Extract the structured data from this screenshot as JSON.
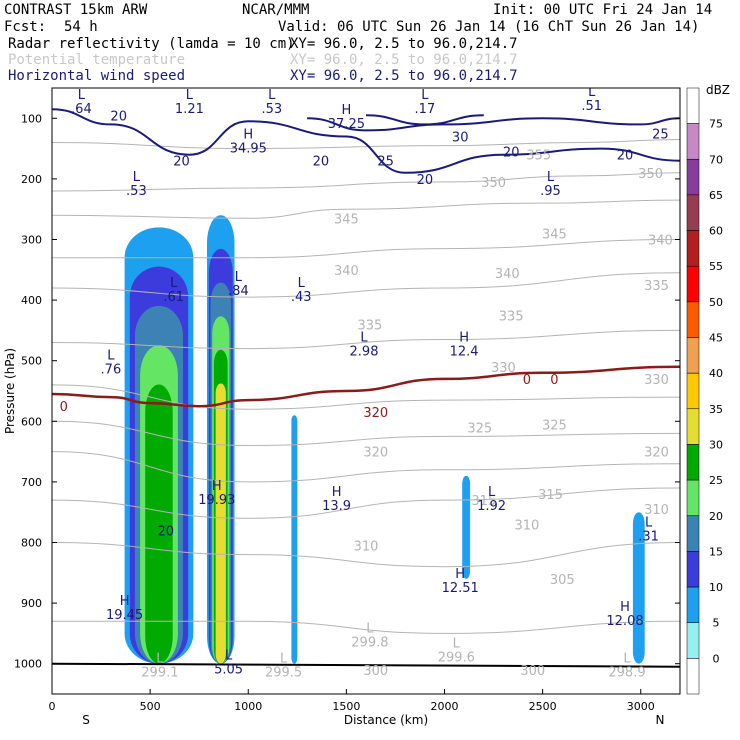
{
  "header": {
    "model": "CONTRAST 15km ARW",
    "center": "NCAR/MMM",
    "init": "Init: 00 UTC Fri 24 Jan 14",
    "fcst_label": "Fcst:",
    "fcst_value": "54 h",
    "valid": "Valid: 06 UTC Sun 26 Jan 14 (16 ChT Sun 26 Jan 14)",
    "fields": [
      {
        "name": "Radar reflectivity (lamda = 10 cm)",
        "xy": "XY=   96.0,  2.5 to  96.0,214.7",
        "color": "#000000"
      },
      {
        "name": "Potential temperature",
        "xy": "XY=   96.0,  2.5 to  96.0,214.7",
        "color": "#c8c8c8"
      },
      {
        "name": "Horizontal wind speed",
        "xy": "XY=   96.0,  2.5 to  96.0,214.7",
        "color": "#1a1a7a"
      }
    ]
  },
  "chart_data": {
    "type": "cross-section contour",
    "xlabel": "Distance (km)",
    "ylabel": "Pressure (hPa)",
    "xlim": [
      0,
      3200
    ],
    "ylim": [
      1050,
      50
    ],
    "x_ticks": [
      0,
      500,
      1000,
      1500,
      2000,
      2500,
      3000
    ],
    "y_ticks": [
      100,
      200,
      300,
      400,
      500,
      600,
      700,
      800,
      900,
      1000
    ],
    "endpoints": {
      "left": "S",
      "right": "N"
    },
    "colorbar": {
      "label": "dBZ",
      "levels": [
        "75",
        "70",
        "65",
        "60",
        "55",
        "50",
        "45",
        "40",
        "35",
        "30",
        "25",
        "20",
        "15",
        "10",
        "5",
        "0"
      ],
      "colors": [
        "#ffffff",
        "#c888c8",
        "#8a3c9c",
        "#983c54",
        "#b41e1e",
        "#ff0000",
        "#ff5a00",
        "#f0a050",
        "#ffc800",
        "#e6dc32",
        "#00aa00",
        "#64e664",
        "#3c82b4",
        "#3c3cdc",
        "#1ea0f0",
        "#96f0f0",
        "#ffffff"
      ]
    },
    "reflectivity_cores": [
      {
        "x_min": 370,
        "x_max": 720,
        "p_top": 280,
        "p_bottom": 1000,
        "max_dbz": 30
      },
      {
        "x_min": 790,
        "x_max": 930,
        "p_top": 260,
        "p_bottom": 1000,
        "max_dbz": 35
      },
      {
        "x_min": 1220,
        "x_max": 1250,
        "p_top": 590,
        "p_bottom": 1000,
        "max_dbz": 10
      },
      {
        "x_min": 2090,
        "x_max": 2130,
        "p_top": 690,
        "p_bottom": 860,
        "max_dbz": 10
      },
      {
        "x_min": 2960,
        "x_max": 3020,
        "p_top": 750,
        "p_bottom": 1000,
        "max_dbz": 10
      }
    ],
    "freezing_level": [
      {
        "x": 0,
        "p": 555
      },
      {
        "x": 300,
        "p": 560
      },
      {
        "x": 500,
        "p": 570
      },
      {
        "x": 750,
        "p": 575
      },
      {
        "x": 1000,
        "p": 565
      },
      {
        "x": 1500,
        "p": 550
      },
      {
        "x": 2000,
        "p": 530
      },
      {
        "x": 2500,
        "p": 520
      },
      {
        "x": 3200,
        "p": 510
      }
    ],
    "theta_isentropes": [
      {
        "value": "355",
        "points": [
          {
            "x": 0,
            "p": 140
          },
          {
            "x": 1000,
            "p": 150
          },
          {
            "x": 2000,
            "p": 145
          },
          {
            "x": 2700,
            "p": 140
          },
          {
            "x": 3200,
            "p": 135
          }
        ]
      },
      {
        "value": "350",
        "points": [
          {
            "x": 0,
            "p": 220
          },
          {
            "x": 1000,
            "p": 215
          },
          {
            "x": 2000,
            "p": 205
          },
          {
            "x": 2700,
            "p": 195
          },
          {
            "x": 3200,
            "p": 190
          }
        ]
      },
      {
        "value": "345",
        "points": [
          {
            "x": 0,
            "p": 260
          },
          {
            "x": 1000,
            "p": 265
          },
          {
            "x": 1500,
            "p": 250
          },
          {
            "x": 2500,
            "p": 240
          },
          {
            "x": 3200,
            "p": 235
          }
        ]
      },
      {
        "value": "340",
        "points": [
          {
            "x": 0,
            "p": 330
          },
          {
            "x": 1000,
            "p": 330
          },
          {
            "x": 2000,
            "p": 315
          },
          {
            "x": 3200,
            "p": 300
          }
        ]
      },
      {
        "value": "335",
        "points": [
          {
            "x": 0,
            "p": 380
          },
          {
            "x": 1000,
            "p": 395
          },
          {
            "x": 2000,
            "p": 380
          },
          {
            "x": 3200,
            "p": 355
          }
        ]
      },
      {
        "value": "330",
        "points": [
          {
            "x": 0,
            "p": 470
          },
          {
            "x": 1000,
            "p": 480
          },
          {
            "x": 2000,
            "p": 465
          },
          {
            "x": 3200,
            "p": 450
          }
        ]
      },
      {
        "value": "325",
        "points": [
          {
            "x": 0,
            "p": 540
          },
          {
            "x": 1000,
            "p": 580
          },
          {
            "x": 2000,
            "p": 565
          },
          {
            "x": 3200,
            "p": 560
          }
        ]
      },
      {
        "value": "320",
        "points": [
          {
            "x": 0,
            "p": 600
          },
          {
            "x": 1000,
            "p": 640
          },
          {
            "x": 2000,
            "p": 625
          },
          {
            "x": 3200,
            "p": 620
          }
        ]
      },
      {
        "value": "315",
        "points": [
          {
            "x": 0,
            "p": 650
          },
          {
            "x": 1000,
            "p": 700
          },
          {
            "x": 2000,
            "p": 680
          },
          {
            "x": 3200,
            "p": 670
          }
        ]
      },
      {
        "value": "310",
        "points": [
          {
            "x": 0,
            "p": 730
          },
          {
            "x": 1000,
            "p": 760
          },
          {
            "x": 2000,
            "p": 730
          },
          {
            "x": 3200,
            "p": 710
          }
        ]
      },
      {
        "value": "305",
        "points": [
          {
            "x": 0,
            "p": 800
          },
          {
            "x": 1000,
            "p": 820
          },
          {
            "x": 2000,
            "p": 840
          },
          {
            "x": 3200,
            "p": 800
          }
        ]
      },
      {
        "value": "300",
        "points": [
          {
            "x": 0,
            "p": 930
          },
          {
            "x": 1000,
            "p": 930
          },
          {
            "x": 2000,
            "p": 950
          },
          {
            "x": 3200,
            "p": 930
          }
        ]
      }
    ],
    "wind_isotachs": [
      {
        "value": "20",
        "points": [
          {
            "x": 0,
            "p": 85
          },
          {
            "x": 300,
            "p": 110
          },
          {
            "x": 700,
            "p": 160
          },
          {
            "x": 1000,
            "p": 105
          },
          {
            "x": 1500,
            "p": 130
          },
          {
            "x": 1800,
            "p": 190
          },
          {
            "x": 2300,
            "p": 160
          },
          {
            "x": 2800,
            "p": 150
          },
          {
            "x": 3200,
            "p": 170
          }
        ]
      },
      {
        "value": "25",
        "points": [
          {
            "x": 1300,
            "p": 100
          },
          {
            "x": 1600,
            "p": 120
          },
          {
            "x": 2000,
            "p": 110
          },
          {
            "x": 2500,
            "p": 100
          },
          {
            "x": 3000,
            "p": 110
          },
          {
            "x": 3200,
            "p": 100
          }
        ]
      },
      {
        "value": "30",
        "points": [
          {
            "x": 1600,
            "p": 95
          },
          {
            "x": 1900,
            "p": 110
          },
          {
            "x": 2200,
            "p": 95
          }
        ]
      }
    ],
    "extrema_labels": [
      {
        "type": "L",
        "value": ".64",
        "x": 150,
        "p": 65
      },
      {
        "type": "L",
        "value": "1.21",
        "x": 700,
        "p": 65
      },
      {
        "type": "L",
        "value": ".53",
        "x": 1120,
        "p": 65
      },
      {
        "type": "L",
        "value": ".17",
        "x": 1900,
        "p": 65
      },
      {
        "type": "L",
        "value": ".51",
        "x": 2750,
        "p": 60
      },
      {
        "type": "H",
        "value": "37.25",
        "x": 1500,
        "p": 90
      },
      {
        "type": "H",
        "value": "34.95",
        "x": 1000,
        "p": 130
      },
      {
        "type": "L",
        "value": ".53",
        "x": 430,
        "p": 200
      },
      {
        "type": "L",
        "value": ".95",
        "x": 2540,
        "p": 200
      },
      {
        "type": "L",
        "value": ".61",
        "x": 620,
        "p": 375
      },
      {
        "type": "L",
        "value": ".84",
        "x": 950,
        "p": 365
      },
      {
        "type": "L",
        "value": ".43",
        "x": 1270,
        "p": 375
      },
      {
        "type": "L",
        "value": "2.98",
        "x": 1590,
        "p": 465
      },
      {
        "type": "H",
        "value": "12.4",
        "x": 2100,
        "p": 465
      },
      {
        "type": "L",
        "value": ".76",
        "x": 300,
        "p": 495
      },
      {
        "type": "H",
        "value": "19.93",
        "x": 840,
        "p": 710
      },
      {
        "type": "H",
        "value": "13.9",
        "x": 1450,
        "p": 720
      },
      {
        "type": "L",
        "value": "1.92",
        "x": 2240,
        "p": 720
      },
      {
        "type": "L",
        "value": ".31",
        "x": 3040,
        "p": 770
      },
      {
        "type": "H",
        "value": "12.51",
        "x": 2080,
        "p": 855
      },
      {
        "type": "H",
        "value": "19.45",
        "x": 370,
        "p": 900
      },
      {
        "type": "H",
        "value": "12.08",
        "x": 2920,
        "p": 910
      },
      {
        "type": "L",
        "value": "299.8",
        "x": 1620,
        "p": 945
      },
      {
        "type": "L",
        "value": "299.6",
        "x": 2060,
        "p": 970
      },
      {
        "type": "L",
        "value": "299.1",
        "x": 550,
        "p": 995
      },
      {
        "type": "L",
        "value": "299.5",
        "x": 1180,
        "p": 995
      },
      {
        "type": "L",
        "value": "298.9",
        "x": 2930,
        "p": 995
      },
      {
        "type": "L",
        "value": "5.05",
        "x": 900,
        "p": 990
      }
    ],
    "contour_labels": [
      {
        "value": "20",
        "color": "#1a1a7a",
        "x": 340,
        "p": 95
      },
      {
        "value": "20",
        "color": "#1a1a7a",
        "x": 660,
        "p": 170
      },
      {
        "value": "20",
        "color": "#1a1a7a",
        "x": 1370,
        "p": 170
      },
      {
        "value": "25",
        "color": "#1a1a7a",
        "x": 1700,
        "p": 170
      },
      {
        "value": "30",
        "color": "#1a1a7a",
        "x": 2080,
        "p": 130
      },
      {
        "value": "20",
        "color": "#1a1a7a",
        "x": 2340,
        "p": 155
      },
      {
        "value": "20",
        "color": "#1a1a7a",
        "x": 1900,
        "p": 200
      },
      {
        "value": "20",
        "color": "#1a1a7a",
        "x": 2920,
        "p": 160
      },
      {
        "value": "25",
        "color": "#1a1a7a",
        "x": 3100,
        "p": 125
      },
      {
        "value": "20",
        "color": "#1a1a7a",
        "x": 580,
        "p": 780
      },
      {
        "value": "355",
        "color": "#b4b4b4",
        "x": 2480,
        "p": 160
      },
      {
        "value": "350",
        "color": "#b4b4b4",
        "x": 2250,
        "p": 205
      },
      {
        "value": "350",
        "color": "#b4b4b4",
        "x": 3050,
        "p": 190
      },
      {
        "value": "345",
        "color": "#b4b4b4",
        "x": 1500,
        "p": 265
      },
      {
        "value": "345",
        "color": "#b4b4b4",
        "x": 2560,
        "p": 290
      },
      {
        "value": "340",
        "color": "#b4b4b4",
        "x": 1500,
        "p": 350
      },
      {
        "value": "340",
        "color": "#b4b4b4",
        "x": 2320,
        "p": 355
      },
      {
        "value": "340",
        "color": "#b4b4b4",
        "x": 3100,
        "p": 300
      },
      {
        "value": "335",
        "color": "#b4b4b4",
        "x": 1620,
        "p": 440
      },
      {
        "value": "335",
        "color": "#b4b4b4",
        "x": 2340,
        "p": 425
      },
      {
        "value": "335",
        "color": "#b4b4b4",
        "x": 3080,
        "p": 375
      },
      {
        "value": "330",
        "color": "#b4b4b4",
        "x": 2300,
        "p": 510
      },
      {
        "value": "330",
        "color": "#b4b4b4",
        "x": 3080,
        "p": 530
      },
      {
        "value": "325",
        "color": "#b4b4b4",
        "x": 2180,
        "p": 610
      },
      {
        "value": "325",
        "color": "#b4b4b4",
        "x": 2560,
        "p": 605
      },
      {
        "value": "320",
        "color": "#b4b4b4",
        "x": 1650,
        "p": 650
      },
      {
        "value": "320",
        "color": "#b4b4b4",
        "x": 3080,
        "p": 650
      },
      {
        "value": "315",
        "color": "#b4b4b4",
        "x": 2200,
        "p": 730
      },
      {
        "value": "315",
        "color": "#b4b4b4",
        "x": 2540,
        "p": 720
      },
      {
        "value": "310",
        "color": "#b4b4b4",
        "x": 2420,
        "p": 770
      },
      {
        "value": "310",
        "color": "#b4b4b4",
        "x": 3080,
        "p": 745
      },
      {
        "value": "310",
        "color": "#b4b4b4",
        "x": 1600,
        "p": 805
      },
      {
        "value": "305",
        "color": "#b4b4b4",
        "x": 2600,
        "p": 860
      },
      {
        "value": "300",
        "color": "#b4b4b4",
        "x": 1650,
        "p": 1010
      },
      {
        "value": "300",
        "color": "#b4b4b4",
        "x": 2450,
        "p": 1010
      },
      {
        "value": "320",
        "color": "#8b1a1a",
        "x": 1650,
        "p": 585
      },
      {
        "value": "0",
        "color": "#8b1a1a",
        "x": 60,
        "p": 575
      },
      {
        "value": "0",
        "color": "#8b1a1a",
        "x": 2420,
        "p": 530
      },
      {
        "value": "0",
        "color": "#8b1a1a",
        "x": 2560,
        "p": 530
      }
    ]
  }
}
